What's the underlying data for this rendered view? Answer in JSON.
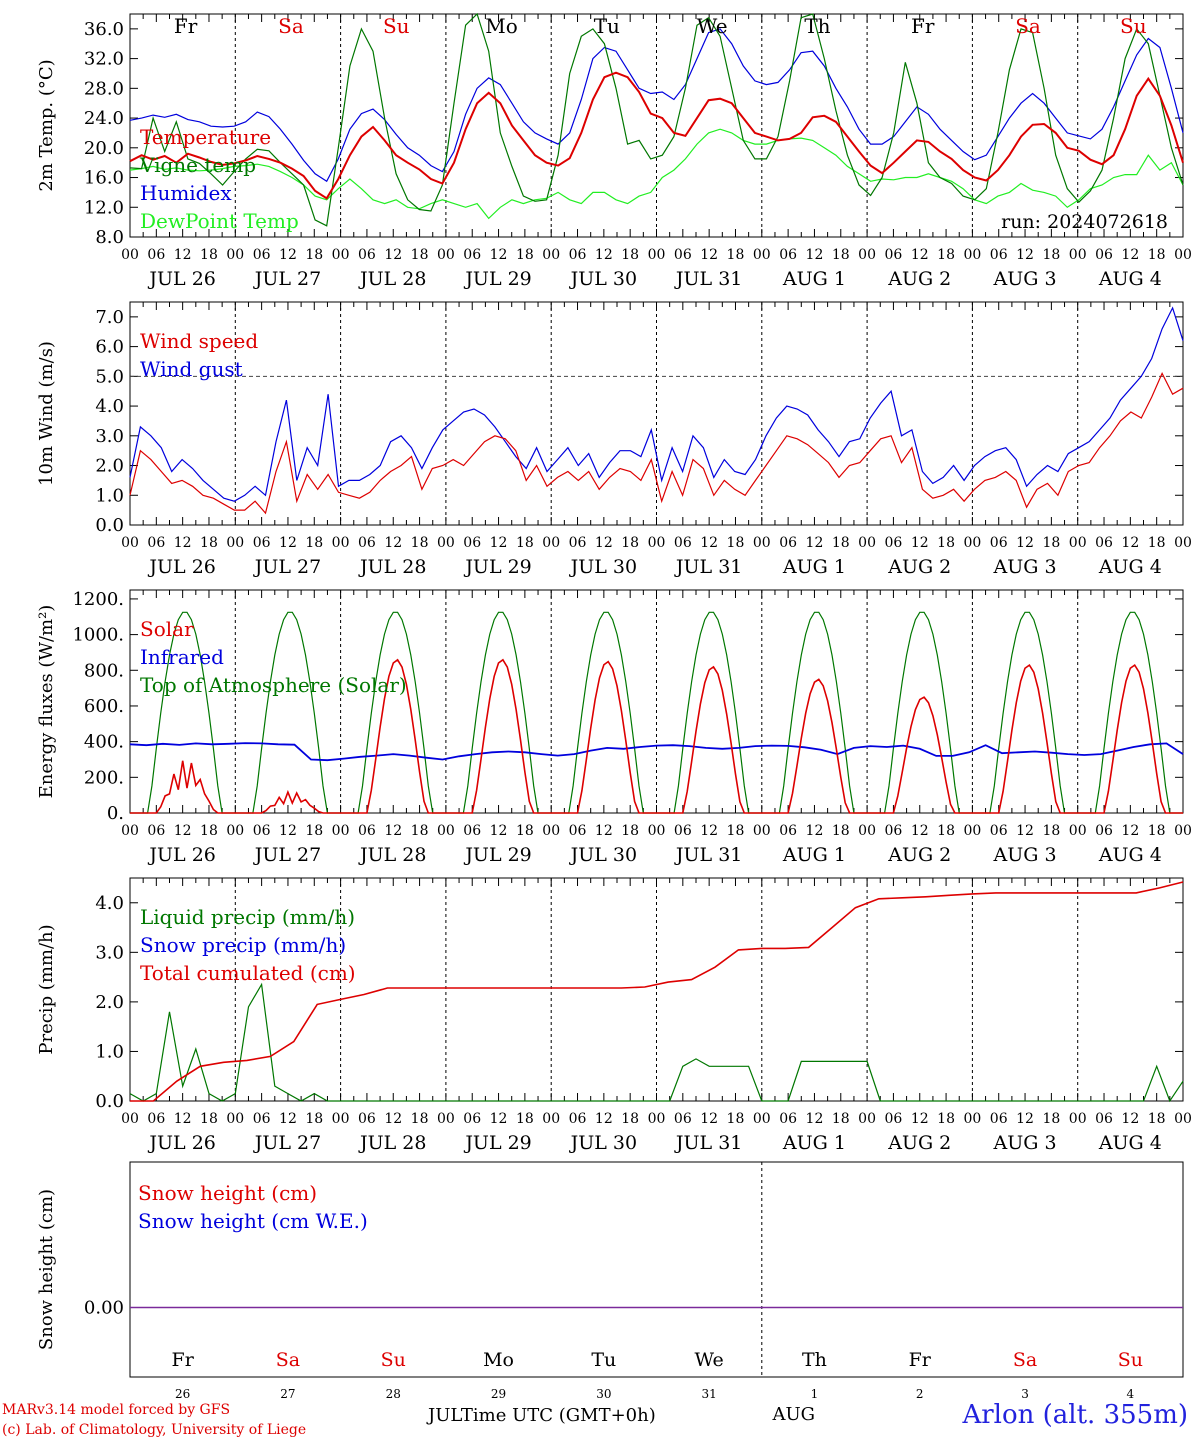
{
  "chart_data": [
    {
      "type": "line",
      "panel": "temperature",
      "ylabel": "2m Temp. (°C)",
      "ylim": [
        8,
        38
      ],
      "yticks": [
        "8.0",
        "12.0",
        "16.0",
        "20.0",
        "24.0",
        "28.0",
        "32.0",
        "36.0"
      ],
      "annotation": "run: 2024072618",
      "weekday_labels": [
        "Fr",
        "Sa",
        "Su",
        "Mo",
        "Tu",
        "We",
        "Th",
        "Fr",
        "Sa",
        "Su"
      ],
      "series": [
        {
          "name": "Temperature",
          "color": "#dd0000",
          "values": [
            18.2,
            19.0,
            18.4,
            18.9,
            18.0,
            19.2,
            18.7,
            18.1,
            17.7,
            17.9,
            18.3,
            18.9,
            18.5,
            18.0,
            17.2,
            16.2,
            14.2,
            13.2,
            15.8,
            19.0,
            21.5,
            22.8,
            21.0,
            19.0,
            18.0,
            17.1,
            15.8,
            15.2,
            18.0,
            22.5,
            26.0,
            27.4,
            26.0,
            23.0,
            21.0,
            19.0,
            18.0,
            17.6,
            18.6,
            22.0,
            26.5,
            29.5,
            30.1,
            29.5,
            27.5,
            24.6,
            24.0,
            22.0,
            21.6,
            24.0,
            26.4,
            26.6,
            26.0,
            24.0,
            22.0,
            21.5,
            21.0,
            21.2,
            22.0,
            24.1,
            24.3,
            23.5,
            21.5,
            19.5,
            17.6,
            16.6,
            18.0,
            19.5,
            21.0,
            20.8,
            19.5,
            18.5,
            17.0,
            16.0,
            15.6,
            17.0,
            19.0,
            21.5,
            23.1,
            23.2,
            22.0,
            20.0,
            19.6,
            18.4,
            17.8,
            19.0,
            22.5,
            27.0,
            29.3,
            27.0,
            23.0,
            18.0
          ]
        },
        {
          "name": "Vigne temp",
          "color": "#007700",
          "values": [
            17.3,
            17.2,
            24.0,
            19.5,
            23.5,
            18.5,
            17.9,
            16.5,
            15.0,
            16.8,
            18.5,
            19.8,
            19.6,
            18.0,
            16.5,
            15.0,
            10.3,
            9.5,
            20.0,
            31.0,
            36.0,
            33.0,
            24.0,
            16.5,
            13.0,
            11.7,
            11.5,
            15.0,
            26.0,
            36.5,
            38.0,
            33.0,
            22.0,
            17.5,
            13.5,
            12.8,
            13.0,
            19.0,
            30.0,
            35.0,
            36.0,
            34.0,
            28.0,
            20.5,
            21.0,
            18.5,
            19.0,
            21.5,
            28.0,
            36.5,
            37.5,
            35.0,
            28.0,
            21.0,
            18.5,
            18.5,
            21.5,
            29.0,
            37.5,
            38.0,
            32.0,
            25.0,
            19.0,
            15.0,
            13.6,
            16.0,
            22.0,
            31.5,
            26.0,
            18.0,
            16.0,
            15.2,
            13.5,
            13.0,
            14.5,
            22.0,
            30.5,
            36.0,
            35.5,
            28.0,
            19.0,
            14.5,
            12.7,
            14.2,
            17.0,
            24.0,
            32.0,
            36.0,
            34.0,
            27.0,
            20.0,
            15.0
          ]
        },
        {
          "name": "Humidex",
          "color": "#0000dd",
          "values": [
            23.7,
            24.0,
            24.4,
            24.1,
            24.5,
            23.8,
            23.5,
            22.9,
            22.8,
            22.9,
            23.5,
            24.8,
            24.2,
            22.5,
            20.5,
            18.3,
            16.5,
            15.5,
            18.5,
            22.5,
            24.6,
            25.2,
            23.8,
            21.8,
            20.0,
            19.0,
            17.6,
            16.8,
            19.5,
            24.5,
            28.0,
            29.4,
            28.5,
            26.0,
            23.5,
            22.0,
            21.2,
            20.5,
            22.0,
            26.5,
            32.0,
            33.5,
            33.0,
            30.5,
            28.0,
            27.3,
            27.5,
            26.5,
            28.5,
            32.0,
            35.5,
            36.0,
            34.0,
            31.0,
            29.0,
            28.5,
            28.8,
            30.5,
            32.8,
            33.0,
            31.0,
            28.0,
            25.5,
            22.5,
            20.5,
            20.5,
            21.5,
            23.5,
            25.5,
            24.5,
            22.5,
            21.0,
            19.5,
            18.4,
            19.0,
            21.5,
            24.0,
            26.0,
            27.3,
            26.0,
            24.0,
            22.0,
            21.6,
            21.2,
            22.5,
            25.5,
            29.0,
            32.5,
            34.7,
            33.5,
            28.0,
            22.0
          ]
        },
        {
          "name": "DewPoint Temp",
          "color": "#22ee22",
          "values": [
            17.0,
            17.2,
            17.5,
            17.1,
            17.3,
            17.0,
            16.9,
            17.0,
            17.2,
            17.5,
            17.6,
            17.8,
            17.5,
            16.8,
            16.0,
            15.0,
            13.5,
            13.0,
            14.5,
            15.8,
            14.5,
            13.0,
            12.5,
            13.0,
            12.0,
            11.8,
            12.5,
            13.0,
            12.5,
            12.0,
            12.5,
            10.5,
            12.0,
            13.0,
            12.5,
            13.0,
            13.2,
            14.0,
            13.0,
            12.5,
            14.0,
            14.0,
            13.0,
            12.5,
            13.5,
            14.0,
            16.0,
            17.0,
            18.5,
            20.5,
            22.0,
            22.5,
            22.0,
            21.0,
            20.5,
            20.5,
            21.0,
            21.2,
            21.3,
            21.0,
            20.0,
            19.0,
            17.5,
            16.5,
            15.5,
            15.8,
            15.7,
            16.0,
            16.0,
            16.5,
            16.0,
            15.5,
            14.5,
            13.0,
            12.5,
            13.5,
            14.0,
            15.2,
            14.3,
            14.0,
            13.5,
            12.0,
            13.0,
            14.5,
            15.0,
            16.0,
            16.4,
            16.4,
            19.0,
            17.0,
            18.0,
            15.0
          ]
        }
      ]
    },
    {
      "type": "line",
      "panel": "wind",
      "ylabel": "10m Wind (m/s)",
      "ylim": [
        0,
        7.5
      ],
      "yticks": [
        "0.0",
        "1.0",
        "2.0",
        "3.0",
        "4.0",
        "5.0",
        "6.0",
        "7.0"
      ],
      "reference_line": 5.0,
      "series": [
        {
          "name": "Wind speed",
          "color": "#dd0000",
          "values": [
            1.0,
            2.5,
            2.2,
            1.8,
            1.4,
            1.5,
            1.3,
            1.0,
            0.9,
            0.7,
            0.5,
            0.5,
            0.8,
            0.4,
            1.8,
            2.8,
            0.8,
            1.7,
            1.2,
            1.7,
            1.1,
            1.0,
            0.9,
            1.1,
            1.5,
            1.8,
            2.0,
            2.3,
            1.2,
            1.9,
            2.0,
            2.2,
            2.0,
            2.4,
            2.8,
            3.0,
            2.9,
            2.5,
            1.5,
            2.0,
            1.3,
            1.6,
            1.8,
            1.5,
            1.8,
            1.2,
            1.6,
            1.9,
            1.8,
            1.5,
            2.2,
            0.8,
            1.8,
            1.0,
            2.2,
            1.9,
            1.0,
            1.5,
            1.2,
            1.0,
            1.5,
            2.0,
            2.5,
            3.0,
            2.9,
            2.7,
            2.4,
            2.1,
            1.6,
            2.0,
            2.1,
            2.5,
            2.9,
            3.0,
            2.1,
            2.6,
            1.2,
            0.9,
            1.0,
            1.2,
            0.8,
            1.2,
            1.5,
            1.6,
            1.8,
            1.5,
            0.6,
            1.2,
            1.4,
            1.0,
            1.8,
            2.0,
            2.1,
            2.6,
            3.0,
            3.5,
            3.8,
            3.6,
            4.3,
            5.1,
            4.4,
            4.6
          ]
        },
        {
          "name": "Wind gust",
          "color": "#0000dd",
          "values": [
            1.6,
            3.3,
            3.0,
            2.6,
            1.8,
            2.2,
            1.9,
            1.5,
            1.2,
            0.9,
            0.8,
            1.0,
            1.3,
            1.0,
            2.8,
            4.2,
            1.5,
            2.6,
            2.0,
            4.4,
            1.3,
            1.5,
            1.5,
            1.7,
            2.0,
            2.8,
            3.0,
            2.6,
            1.9,
            2.6,
            3.2,
            3.5,
            3.8,
            3.9,
            3.7,
            3.3,
            2.8,
            2.3,
            1.9,
            2.6,
            1.8,
            2.2,
            2.6,
            2.0,
            2.4,
            1.6,
            2.1,
            2.5,
            2.5,
            2.3,
            3.2,
            1.5,
            2.6,
            1.8,
            3.0,
            2.6,
            1.6,
            2.2,
            1.8,
            1.7,
            2.2,
            3.0,
            3.6,
            4.0,
            3.9,
            3.7,
            3.2,
            2.8,
            2.3,
            2.8,
            2.9,
            3.6,
            4.1,
            4.5,
            3.0,
            3.2,
            1.8,
            1.4,
            1.6,
            2.0,
            1.5,
            2.0,
            2.3,
            2.5,
            2.6,
            2.2,
            1.3,
            1.7,
            2.0,
            1.8,
            2.4,
            2.6,
            2.8,
            3.2,
            3.6,
            4.2,
            4.6,
            5.0,
            5.6,
            6.6,
            7.3,
            6.2
          ]
        }
      ]
    },
    {
      "type": "line",
      "panel": "energy",
      "ylabel": "Energy fluxes (W/m²)",
      "ylim": [
        0,
        1250
      ],
      "yticks": [
        "0.",
        "200.",
        "400.",
        "600.",
        "800.",
        "1000.",
        "1200."
      ],
      "series": [
        {
          "name": "Solar",
          "color": "#dd0000",
          "days_peak": [
            300,
            120,
            860,
            860,
            850,
            820,
            750,
            650,
            830,
            830
          ]
        },
        {
          "name": "Infrared",
          "color": "#0000dd",
          "values": [
            385,
            380,
            388,
            382,
            390,
            385,
            388,
            392,
            390,
            385,
            383,
            300,
            296,
            305,
            315,
            322,
            330,
            322,
            310,
            300,
            318,
            330,
            340,
            345,
            340,
            330,
            322,
            330,
            350,
            365,
            360,
            370,
            378,
            380,
            375,
            365,
            360,
            365,
            375,
            378,
            376,
            368,
            355,
            330,
            365,
            375,
            370,
            378,
            360,
            320,
            320,
            340,
            380,
            335,
            340,
            345,
            338,
            330,
            325,
            330,
            350,
            370,
            385,
            390,
            330
          ]
        },
        {
          "name": "Top of Atmosphere (Solar)",
          "color": "#007700",
          "peak": 1130
        }
      ]
    },
    {
      "type": "line",
      "panel": "precip",
      "ylabel": "Precip (mm/h)",
      "ylim": [
        0,
        4.5
      ],
      "yticks": [
        "0.0",
        "1.0",
        "2.0",
        "3.0",
        "4.0"
      ],
      "series": [
        {
          "name": "Liquid precip (mm/h)",
          "color": "#007700"
        },
        {
          "name": "Snow precip (mm/h)",
          "color": "#0000dd"
        },
        {
          "name": "Total cumulated (cm)",
          "color": "#dd0000",
          "values": [
            0.0,
            0.0,
            0.4,
            0.7,
            0.78,
            0.82,
            0.9,
            1.2,
            1.95,
            2.05,
            2.15,
            2.28,
            2.28,
            2.28,
            2.28,
            2.28,
            2.28,
            2.28,
            2.28,
            2.28,
            2.28,
            2.28,
            2.3,
            2.4,
            2.45,
            2.7,
            3.05,
            3.08,
            3.08,
            3.1,
            3.5,
            3.9,
            4.08,
            4.1,
            4.12,
            4.15,
            4.18,
            4.2,
            4.2,
            4.2,
            4.2,
            4.2,
            4.2,
            4.2,
            4.3,
            4.42
          ]
        }
      ]
    },
    {
      "type": "line",
      "panel": "snow",
      "ylabel": "Snow height (cm)",
      "yticks": [
        "0.00"
      ],
      "weekday_labels": [
        "Fr",
        "Sa",
        "Su",
        "Mo",
        "Tu",
        "We",
        "Th",
        "Fr",
        "Sa",
        "Su"
      ],
      "day_numbers": [
        "26",
        "27",
        "28",
        "29",
        "30",
        "31",
        "1",
        "2",
        "3",
        "4"
      ],
      "series": [
        {
          "name": "Snow height (cm)",
          "color": "#dd0000",
          "values": [
            0,
            0
          ]
        },
        {
          "name": "Snow height (cm W.E.)",
          "color": "#0000dd",
          "values": [
            0,
            0
          ]
        }
      ]
    }
  ],
  "x_axis": {
    "hour_ticks": [
      "00",
      "06",
      "12",
      "18"
    ],
    "end_tick": "00",
    "dates": [
      "JUL 26",
      "JUL 27",
      "JUL 28",
      "JUL 29",
      "JUL 30",
      "JUL 31",
      "AUG  1",
      "AUG  2",
      "AUG  3",
      "AUG  4"
    ],
    "weekend_indexes": [
      1,
      2,
      8,
      9
    ],
    "colors": {
      "weekday": "#000000",
      "weekend": "#dd0000"
    }
  },
  "footer": {
    "credit_line1": "MARv3.14 model forced by GFS",
    "credit_line2": "(c) Lab. of Climatology, University of Liege",
    "month_left": "JUL",
    "axis_label": "Time UTC (GMT+0h)",
    "month_right": "AUG",
    "site": "Arlon (alt. 355m)"
  }
}
